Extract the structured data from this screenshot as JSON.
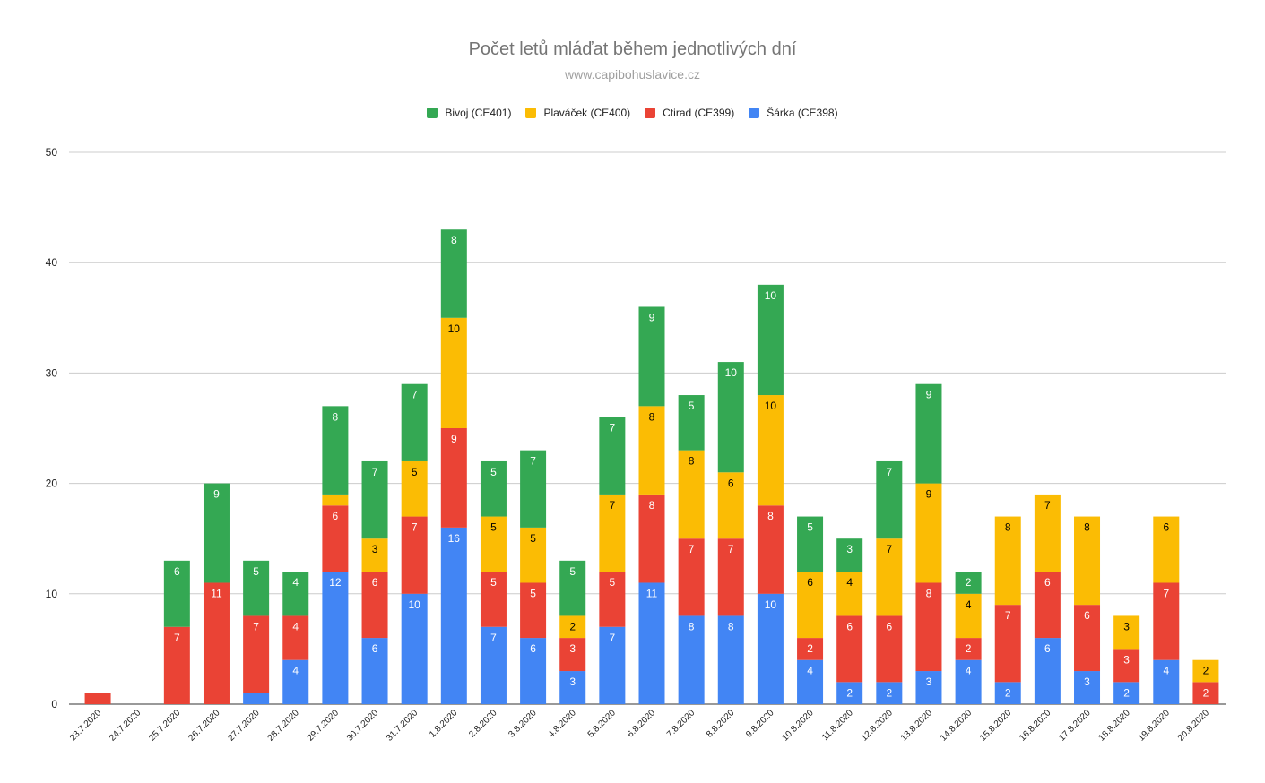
{
  "chart_data": {
    "type": "bar",
    "stacked": true,
    "title": "Počet letů mláďat během jednotlivých dní",
    "subtitle": "www.capibohuslavice.cz",
    "ylim": [
      0,
      50
    ],
    "yticks": [
      0,
      10,
      20,
      30,
      40,
      50
    ],
    "grid": true,
    "legend_position": "top",
    "categories": [
      "23.7.2020",
      "24.7.2020",
      "25.7.2020",
      "26.7.2020",
      "27.7.2020",
      "28.7.2020",
      "29.7.2020",
      "30.7.2020",
      "31.7.2020",
      "1.8.2020",
      "2.8.2020",
      "3.8.2020",
      "4.8.2020",
      "5.8.2020",
      "6.8.2020",
      "7.8.2020",
      "8.8.2020",
      "9.8.2020",
      "10.8.2020",
      "11.8.2020",
      "12.8.2020",
      "13.8.2020",
      "14.8.2020",
      "15.8.2020",
      "16.8.2020",
      "17.8.2020",
      "18.8.2020",
      "19.8.2020",
      "20.8.2020"
    ],
    "series": [
      {
        "name": "Šárka (CE398)",
        "color": "#4285f4",
        "label_color": "#ffffff",
        "values": [
          0,
          0,
          0,
          0,
          1,
          4,
          12,
          6,
          10,
          16,
          7,
          6,
          3,
          7,
          11,
          8,
          8,
          10,
          4,
          2,
          2,
          3,
          4,
          2,
          6,
          3,
          2,
          4,
          0
        ]
      },
      {
        "name": "Ctirad (CE399)",
        "color": "#ea4335",
        "label_color": "#ffffff",
        "values": [
          1,
          0,
          7,
          11,
          7,
          4,
          6,
          6,
          7,
          9,
          5,
          5,
          3,
          5,
          8,
          7,
          7,
          8,
          2,
          6,
          6,
          8,
          2,
          7,
          6,
          6,
          3,
          7,
          2
        ]
      },
      {
        "name": "Plaváček (CE400)",
        "color": "#fbbc04",
        "label_color": "#000000",
        "values": [
          0,
          0,
          0,
          0,
          0,
          0,
          1,
          3,
          5,
          10,
          5,
          5,
          2,
          7,
          8,
          8,
          6,
          10,
          6,
          4,
          7,
          9,
          4,
          8,
          7,
          8,
          3,
          6,
          2
        ]
      },
      {
        "name": "Bivoj (CE401)",
        "color": "#34a853",
        "label_color": "#ffffff",
        "values": [
          0,
          0,
          6,
          9,
          5,
          4,
          8,
          7,
          7,
          8,
          5,
          7,
          5,
          7,
          9,
          5,
          10,
          10,
          5,
          3,
          7,
          9,
          2,
          0,
          0,
          0,
          0,
          0,
          0
        ]
      }
    ],
    "legend_order": [
      3,
      2,
      1,
      0
    ]
  }
}
